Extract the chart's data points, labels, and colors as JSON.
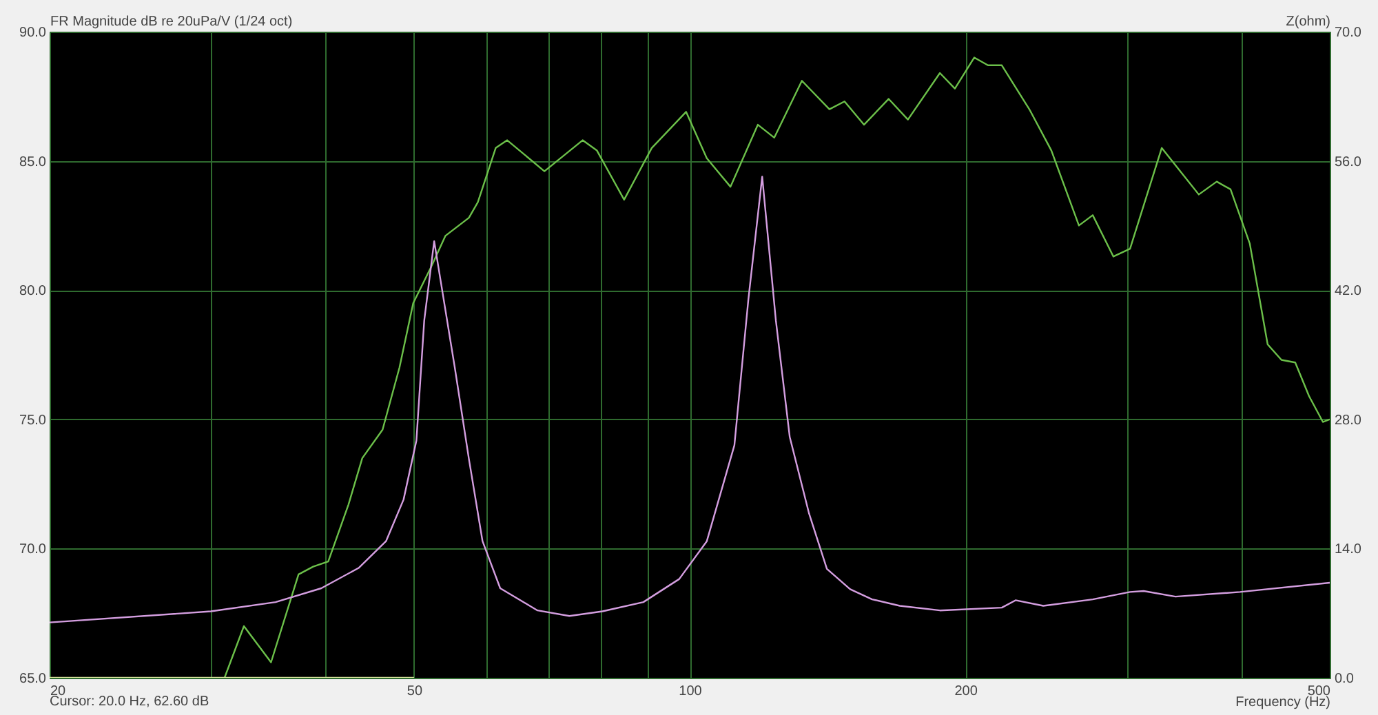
{
  "chart_data": {
    "type": "line",
    "ylabel": "FR Magnitude dB re 20uPa/V (1/24 oct)",
    "y2label": "Z(ohm)",
    "xlabel": "Frequency (Hz)",
    "annotations": [
      "Cursor: 20.0 Hz, 62.60 dB"
    ],
    "log": "x",
    "grid": true,
    "line_style": "solid",
    "xlim": [
      20,
      500
    ],
    "xticks": [
      20,
      {
        "value": 30,
        "label": null
      },
      {
        "value": 40,
        "label": null
      },
      50,
      {
        "value": 60,
        "label": null
      },
      {
        "value": 70,
        "label": null
      },
      {
        "value": 80,
        "label": null
      },
      {
        "value": 90,
        "label": null
      },
      100,
      200,
      {
        "value": 300,
        "label": null
      },
      {
        "value": 400,
        "label": null
      },
      500
    ],
    "ylim": [
      65,
      90
    ],
    "yticks": [
      {
        "value": 65,
        "label": "65.0"
      },
      {
        "value": 70,
        "label": "70.0"
      },
      {
        "value": 75,
        "label": "75.0"
      },
      {
        "value": 80,
        "label": "80.0"
      },
      {
        "value": 85,
        "label": "85.0"
      },
      {
        "value": 90,
        "label": "90.0"
      }
    ],
    "y2lim": [
      0,
      70
    ],
    "y2ticks": [
      {
        "value": 0,
        "label": "0.0"
      },
      {
        "value": 14,
        "label": "14.0"
      },
      {
        "value": 28,
        "label": "28.0"
      },
      {
        "value": 42,
        "label": "42.0"
      },
      {
        "value": 56,
        "label": "56.0"
      },
      {
        "value": 70,
        "label": "70.0"
      }
    ],
    "series": [
      {
        "color": "#6cc04a",
        "x": [
          31.05,
          32.6,
          34.9,
          37.4,
          38.8,
          40.3,
          42.4,
          43.9,
          46.2,
          48.2,
          49.9,
          52.2,
          54.1,
          57.4,
          58.7,
          61.4,
          63.2,
          69.4,
          76.4,
          79.2,
          84.8,
          90.9,
          99.1,
          104.4,
          110.8,
          118.7,
          123.7,
          132.6,
          142.1,
          147.6,
          155.0,
          164.9,
          173.1,
          187.6,
          194.8,
          204.5,
          211.7,
          219.2,
          234.9,
          248.3,
          266.1,
          275.5,
          290.2,
          302.6,
          327.7,
          359.7,
          376.3,
          389.6,
          408.9,
          427.7,
          442.8,
          458.4,
          474.6,
          491.4,
          500
        ],
        "values": [
          65.0,
          67.0,
          65.6,
          69.0,
          69.3,
          69.5,
          71.7,
          73.5,
          74.6,
          77.0,
          79.5,
          80.9,
          82.1,
          82.8,
          83.4,
          85.5,
          85.8,
          84.6,
          85.8,
          85.4,
          83.5,
          85.5,
          86.9,
          85.1,
          84.0,
          86.4,
          85.9,
          88.1,
          87.0,
          87.3,
          86.4,
          87.4,
          86.6,
          88.4,
          87.8,
          89.0,
          88.7,
          88.7,
          87.0,
          85.4,
          82.5,
          82.9,
          81.3,
          81.6,
          85.5,
          83.7,
          84.2,
          83.9,
          81.8,
          77.9,
          77.3,
          77.2,
          75.9,
          74.9,
          75.0
        ]
      },
      {
        "color": "#d8e49c",
        "x": [
          20,
          50
        ],
        "values": [
          65.0,
          65.0
        ]
      },
      {
        "color": "#d49ee0",
        "axis": "y2",
        "x": [
          20,
          30,
          35.3,
          39.6,
          43.5,
          46.6,
          48.7,
          50.3,
          51.3,
          52.6,
          55.4,
          57.4,
          59.4,
          62.1,
          68.2,
          73.9,
          80.3,
          89.0,
          97.4,
          104.4,
          111.9,
          115.9,
          120.0,
          124.2,
          128.6,
          135.0,
          141.2,
          149.7,
          158.2,
          169.6,
          187.6,
          219.2,
          226.9,
          243.3,
          275.5,
          302.6,
          313.2,
          339.2,
          399,
          500
        ],
        "values": [
          6.0,
          7.2,
          8.2,
          9.7,
          11.9,
          14.8,
          19.3,
          25.7,
          38.7,
          47.3,
          33.6,
          23.7,
          14.8,
          9.7,
          7.3,
          6.7,
          7.2,
          8.2,
          10.7,
          14.8,
          25.2,
          41.0,
          54.3,
          38.7,
          26.1,
          17.8,
          11.8,
          9.6,
          8.5,
          7.8,
          7.3,
          7.6,
          8.4,
          7.8,
          8.5,
          9.3,
          9.4,
          8.8,
          9.3,
          10.3
        ]
      }
    ]
  }
}
